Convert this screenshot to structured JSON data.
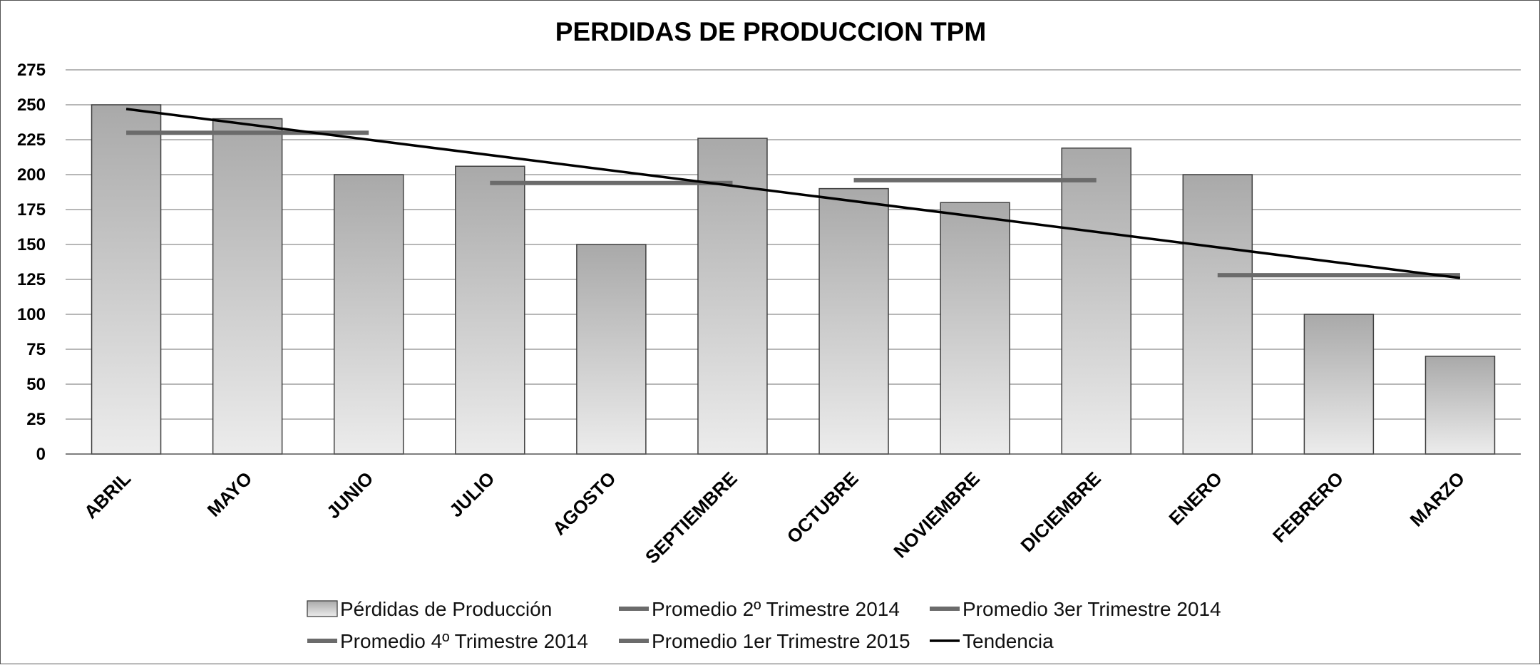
{
  "chart_data": {
    "type": "bar",
    "title": "PERDIDAS DE PRODUCCION TPM",
    "categories": [
      "ABRIL",
      "MAYO",
      "JUNIO",
      "JULIO",
      "AGOSTO",
      "SEPTIEMBRE",
      "OCTUBRE",
      "NOVIEMBRE",
      "DICIEMBRE",
      "ENERO",
      "FEBRERO",
      "MARZO"
    ],
    "ylim": [
      0,
      275
    ],
    "yticks": [
      0,
      25,
      50,
      75,
      100,
      125,
      150,
      175,
      200,
      225,
      250,
      275
    ],
    "grid": true,
    "legend_position": "bottom",
    "series": [
      {
        "name": "Pérdidas de Producción",
        "kind": "bar",
        "values": [
          250,
          240,
          200,
          206,
          150,
          226,
          190,
          180,
          219,
          200,
          100,
          70
        ]
      },
      {
        "name": "Promedio 2º Trimestre 2014",
        "kind": "average",
        "categories": [
          "ABRIL",
          "MAYO",
          "JUNIO"
        ],
        "value": 230
      },
      {
        "name": "Promedio 3er Trimestre 2014",
        "kind": "average",
        "categories": [
          "JULIO",
          "AGOSTO",
          "SEPTIEMBRE"
        ],
        "value": 194
      },
      {
        "name": "Promedio 4º Trimestre 2014",
        "kind": "average",
        "categories": [
          "OCTUBRE",
          "NOVIEMBRE",
          "DICIEMBRE"
        ],
        "value": 196
      },
      {
        "name": "Promedio 1er Trimestre 2015",
        "kind": "average",
        "categories": [
          "ENERO",
          "FEBRERO",
          "MARZO"
        ],
        "value": 128
      },
      {
        "name": "Tendencia",
        "kind": "trend",
        "start": 247,
        "end": 126
      }
    ],
    "colors": {
      "bar_top": "#a9a9a9",
      "bar_bottom": "#ececec",
      "bar_edge": "#404040",
      "average_line": "#6b6b6b",
      "trend_line": "#000000",
      "grid": "#8c8c8c"
    }
  }
}
